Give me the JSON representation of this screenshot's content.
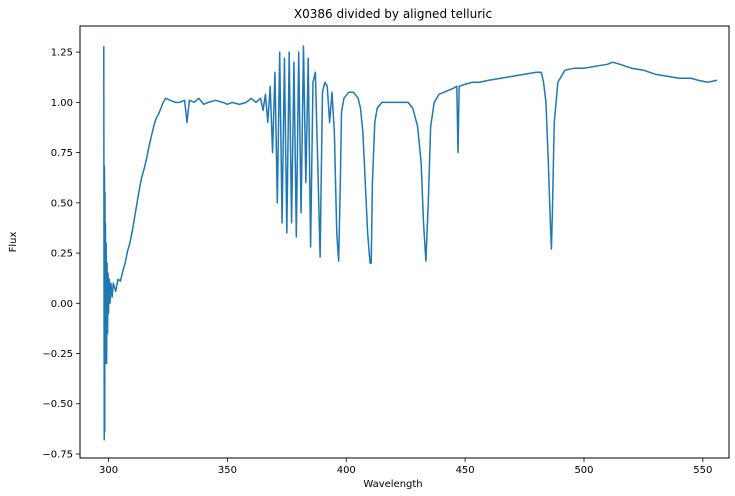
{
  "chart_data": {
    "type": "line",
    "title": "X0386 divided by aligned telluric",
    "xlabel": "Wavelength",
    "ylabel": "Flux",
    "xlim": [
      288,
      561
    ],
    "ylim": [
      -0.77,
      1.38
    ],
    "xticks": [
      300,
      350,
      400,
      450,
      500,
      550
    ],
    "yticks": [
      -0.75,
      -0.5,
      -0.25,
      0.0,
      0.25,
      0.5,
      0.75,
      1.0,
      1.25
    ],
    "ytick_labels": [
      "−0.75",
      "−0.50",
      "−0.25",
      "0.00",
      "0.25",
      "0.50",
      "0.75",
      "1.00",
      "1.25"
    ],
    "grid": false,
    "line_color": "#1f77b4",
    "series": [
      {
        "points": [
          [
            298.0,
            1.28
          ],
          [
            298.1,
            0.2
          ],
          [
            298.2,
            -0.68
          ],
          [
            298.3,
            0.68
          ],
          [
            298.4,
            -0.64
          ],
          [
            298.5,
            0.55
          ],
          [
            298.6,
            -0.3
          ],
          [
            298.7,
            0.4
          ],
          [
            298.8,
            -0.2
          ],
          [
            299.0,
            0.3
          ],
          [
            299.2,
            -0.3
          ],
          [
            299.4,
            0.2
          ],
          [
            299.6,
            -0.15
          ],
          [
            299.8,
            0.15
          ],
          [
            300.0,
            -0.05
          ],
          [
            300.3,
            0.12
          ],
          [
            300.6,
            0.0
          ],
          [
            301,
            0.1
          ],
          [
            301.5,
            0.03
          ],
          [
            302,
            0.1
          ],
          [
            303,
            0.06
          ],
          [
            304,
            0.12
          ],
          [
            305,
            0.11
          ],
          [
            306,
            0.16
          ],
          [
            307,
            0.2
          ],
          [
            308,
            0.26
          ],
          [
            309,
            0.3
          ],
          [
            310,
            0.36
          ],
          [
            311,
            0.43
          ],
          [
            312,
            0.5
          ],
          [
            313,
            0.57
          ],
          [
            314,
            0.63
          ],
          [
            315,
            0.67
          ],
          [
            316,
            0.72
          ],
          [
            317,
            0.78
          ],
          [
            318,
            0.83
          ],
          [
            319,
            0.88
          ],
          [
            320,
            0.92
          ],
          [
            321,
            0.94
          ],
          [
            322,
            0.97
          ],
          [
            323,
            1.0
          ],
          [
            324,
            1.02
          ],
          [
            326,
            1.01
          ],
          [
            328,
            1.0
          ],
          [
            330,
            1.0
          ],
          [
            332,
            1.01
          ],
          [
            333,
            0.9
          ],
          [
            334,
            1.01
          ],
          [
            336,
            1.0
          ],
          [
            338,
            1.02
          ],
          [
            340,
            0.99
          ],
          [
            342,
            1.0
          ],
          [
            345,
            1.01
          ],
          [
            348,
            1.0
          ],
          [
            350,
            0.99
          ],
          [
            352,
            1.0
          ],
          [
            355,
            0.99
          ],
          [
            358,
            1.0
          ],
          [
            360,
            1.02
          ],
          [
            362,
            1.0
          ],
          [
            364,
            1.02
          ],
          [
            365,
            0.96
          ],
          [
            366,
            1.04
          ],
          [
            367,
            0.9
          ],
          [
            368,
            1.08
          ],
          [
            369,
            0.75
          ],
          [
            370,
            1.15
          ],
          [
            371,
            0.5
          ],
          [
            372,
            1.25
          ],
          [
            373,
            0.4
          ],
          [
            374,
            1.22
          ],
          [
            375,
            0.35
          ],
          [
            376,
            1.25
          ],
          [
            377,
            0.4
          ],
          [
            378,
            1.2
          ],
          [
            379,
            0.33
          ],
          [
            380,
            1.25
          ],
          [
            381,
            0.45
          ],
          [
            382,
            1.28
          ],
          [
            383,
            0.6
          ],
          [
            384,
            1.22
          ],
          [
            385,
            0.28
          ],
          [
            386,
            1.1
          ],
          [
            387,
            1.15
          ],
          [
            388,
            0.7
          ],
          [
            389,
            0.23
          ],
          [
            390,
            1.05
          ],
          [
            391,
            1.1
          ],
          [
            392,
            1.08
          ],
          [
            393,
            0.9
          ],
          [
            394,
            1.05
          ],
          [
            395,
            0.85
          ],
          [
            396,
            0.35
          ],
          [
            396.8,
            0.21
          ],
          [
            397.5,
            0.6
          ],
          [
            398,
            0.95
          ],
          [
            399,
            1.02
          ],
          [
            401,
            1.05
          ],
          [
            403,
            1.05
          ],
          [
            405,
            1.02
          ],
          [
            406,
            0.97
          ],
          [
            407,
            0.85
          ],
          [
            408,
            0.6
          ],
          [
            409,
            0.35
          ],
          [
            410,
            0.2
          ],
          [
            410.5,
            0.2
          ],
          [
            411,
            0.6
          ],
          [
            412,
            0.9
          ],
          [
            413,
            0.97
          ],
          [
            415,
            1.0
          ],
          [
            418,
            1.0
          ],
          [
            420,
            1.0
          ],
          [
            422,
            1.0
          ],
          [
            424,
            1.0
          ],
          [
            426,
            1.0
          ],
          [
            428,
            0.97
          ],
          [
            430,
            0.88
          ],
          [
            431.5,
            0.7
          ],
          [
            432.5,
            0.4
          ],
          [
            433.5,
            0.21
          ],
          [
            434.5,
            0.5
          ],
          [
            435.5,
            0.88
          ],
          [
            437,
            1.0
          ],
          [
            439,
            1.04
          ],
          [
            441,
            1.05
          ],
          [
            443,
            1.06
          ],
          [
            445,
            1.07
          ],
          [
            446.5,
            1.08
          ],
          [
            447,
            0.75
          ],
          [
            447.5,
            1.08
          ],
          [
            450,
            1.09
          ],
          [
            453,
            1.1
          ],
          [
            456,
            1.1
          ],
          [
            460,
            1.11
          ],
          [
            465,
            1.12
          ],
          [
            470,
            1.13
          ],
          [
            475,
            1.14
          ],
          [
            480,
            1.15
          ],
          [
            482,
            1.15
          ],
          [
            483,
            1.1
          ],
          [
            484,
            1.0
          ],
          [
            485,
            0.7
          ],
          [
            486,
            0.35
          ],
          [
            486.3,
            0.27
          ],
          [
            486.7,
            0.45
          ],
          [
            487.5,
            0.9
          ],
          [
            489,
            1.1
          ],
          [
            492,
            1.16
          ],
          [
            496,
            1.17
          ],
          [
            500,
            1.17
          ],
          [
            505,
            1.18
          ],
          [
            510,
            1.19
          ],
          [
            512,
            1.2
          ],
          [
            515,
            1.19
          ],
          [
            520,
            1.17
          ],
          [
            525,
            1.16
          ],
          [
            530,
            1.14
          ],
          [
            535,
            1.13
          ],
          [
            540,
            1.12
          ],
          [
            545,
            1.12
          ],
          [
            548,
            1.11
          ],
          [
            552,
            1.1
          ],
          [
            556,
            1.11
          ]
        ]
      }
    ]
  }
}
